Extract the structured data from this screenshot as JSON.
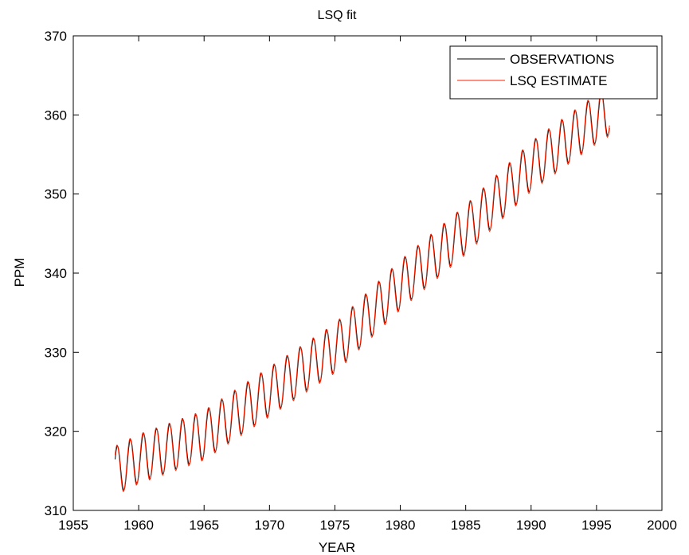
{
  "chart_data": {
    "type": "line",
    "title": "LSQ fit",
    "xlabel": "YEAR",
    "ylabel": "PPM",
    "xlim": [
      1955,
      2000
    ],
    "ylim": [
      310,
      370
    ],
    "xticks": [
      1955,
      1960,
      1965,
      1970,
      1975,
      1980,
      1985,
      1990,
      1995,
      2000
    ],
    "yticks": [
      310,
      320,
      330,
      340,
      350,
      360,
      370
    ],
    "grid": false,
    "legend_position": "top-right",
    "x_range": [
      1958.2,
      1996.0
    ],
    "trend_anchors": {
      "years": [
        1958.2,
        1960,
        1965,
        1970,
        1975,
        1980,
        1985,
        1990,
        1995,
        1996
      ],
      "ppm": [
        315.0,
        316.5,
        319.5,
        325.0,
        330.5,
        338.5,
        345.5,
        353.5,
        359.5,
        360.5
      ]
    },
    "seasonal_amplitude": 3.0,
    "series": [
      {
        "name": "OBSERVATIONS",
        "color": "#000000",
        "amplitude_scale": 1.0,
        "phase_shift": 0.0,
        "offset": 0.0
      },
      {
        "name": "LSQ ESTIMATE",
        "color": "#ff2200",
        "amplitude_scale": 1.05,
        "phase_shift": 0.03,
        "offset": 0.0
      }
    ]
  }
}
